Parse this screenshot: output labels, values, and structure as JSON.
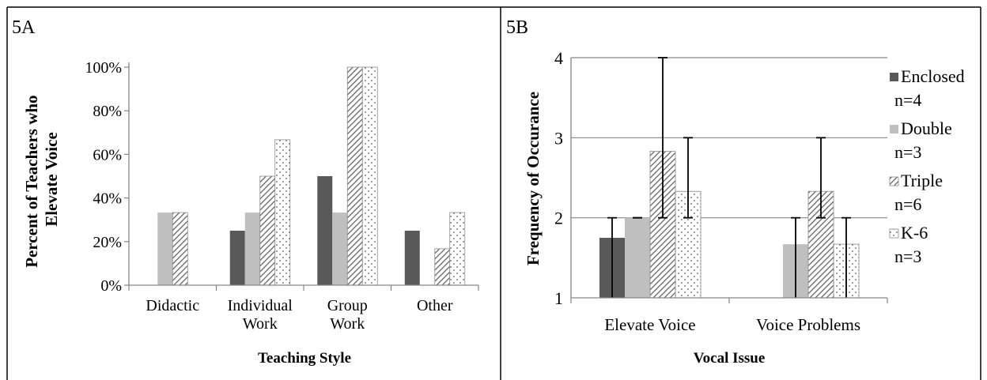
{
  "chart_data": [
    {
      "panel_label": "5A",
      "type": "bar",
      "categories": [
        "Didactic",
        "Individual Work",
        "Group Work",
        "Other"
      ],
      "category_lines": [
        [
          "Didactic"
        ],
        [
          "Individual",
          "Work"
        ],
        [
          "Group",
          "Work"
        ],
        [
          "Other"
        ]
      ],
      "series": [
        {
          "name": "Enclosed",
          "values": [
            0,
            25,
            50,
            25
          ],
          "pattern": "solid-dark"
        },
        {
          "name": "Double",
          "values": [
            33.3,
            33.3,
            33.3,
            0
          ],
          "pattern": "solid-light"
        },
        {
          "name": "Triple",
          "values": [
            33.3,
            50,
            100,
            16.7
          ],
          "pattern": "diagonal"
        },
        {
          "name": "K-6",
          "values": [
            0,
            66.7,
            100,
            33.3
          ],
          "pattern": "dots"
        }
      ],
      "xlabel": "Teaching Style",
      "ylabel_lines": [
        "Percent of Teachers who",
        "Elevate Voice"
      ],
      "ylim": [
        0,
        100
      ],
      "yticks": [
        0,
        20,
        40,
        60,
        80,
        100
      ],
      "ytick_labels": [
        "0%",
        "20%",
        "40%",
        "60%",
        "80%",
        "100%"
      ],
      "grid": false,
      "legend": "none"
    },
    {
      "panel_label": "5B",
      "type": "bar",
      "categories": [
        "Elevate Voice",
        "Voice Problems"
      ],
      "series": [
        {
          "name": "Enclosed",
          "legend_sub": "n=4",
          "values": [
            1.75,
            null
          ],
          "err_low": [
            1,
            null
          ],
          "err_high": [
            2,
            null
          ],
          "pattern": "solid-dark"
        },
        {
          "name": "Double",
          "legend_sub": "n=3",
          "values": [
            2,
            1.67
          ],
          "err_low": [
            2,
            1
          ],
          "err_high": [
            2,
            2
          ],
          "pattern": "solid-light"
        },
        {
          "name": "Triple",
          "legend_sub": "n=6",
          "values": [
            2.83,
            2.33
          ],
          "err_low": [
            2,
            2
          ],
          "err_high": [
            4,
            3
          ],
          "pattern": "diagonal"
        },
        {
          "name": "K-6",
          "legend_sub": "n=3",
          "values": [
            2.33,
            1.67
          ],
          "err_low": [
            2,
            1
          ],
          "err_high": [
            3,
            2
          ],
          "pattern": "dots"
        }
      ],
      "xlabel": "Vocal Issue",
      "ylabel": "Frequency of Occurance",
      "ylim": [
        1,
        4
      ],
      "yticks": [
        1,
        2,
        3,
        4
      ],
      "ytick_labels": [
        "1",
        "2",
        "3",
        "4"
      ],
      "grid": true,
      "legend": "right"
    }
  ],
  "colors": {
    "enclosed": "#595959",
    "double": "#bfbfbf",
    "pattern_line": "#5a5a5a",
    "axis": "#868686",
    "grid": "#868686",
    "border": "#000000"
  }
}
